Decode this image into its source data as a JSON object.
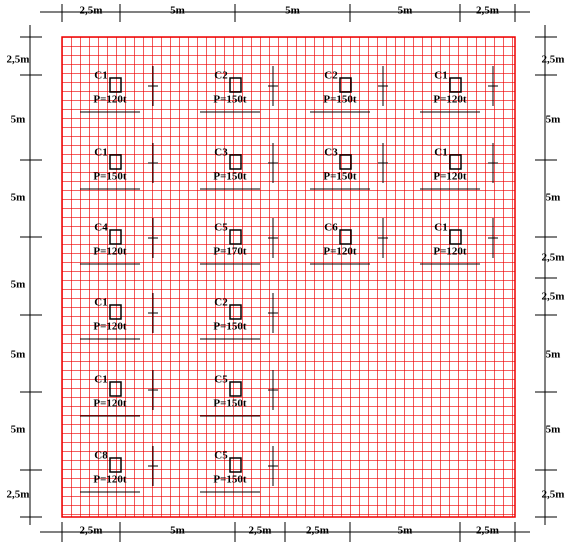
{
  "dimensions": {
    "top": [
      "2,5m",
      "5m",
      "5m",
      "5m",
      "2,5m"
    ],
    "bottom": [
      "2,5m",
      "5m",
      "2,5m",
      "2,5m",
      "5m",
      "2,5m"
    ],
    "left": [
      "2,5m",
      "5m",
      "5m",
      "5m",
      "5m",
      "5m",
      "2,5m"
    ],
    "right": [
      "2,5m",
      "5m",
      "5m",
      "2,5m",
      "2,5m",
      "5m",
      "5m",
      "2,5m"
    ]
  },
  "columns": [
    {
      "name": "C1",
      "load": "P=120t"
    },
    {
      "name": "C2",
      "load": "P=150t"
    },
    {
      "name": "C2",
      "load": "P=150t"
    },
    {
      "name": "C1",
      "load": "P=120t"
    },
    {
      "name": "C1",
      "load": "P=150t"
    },
    {
      "name": "C3",
      "load": "P=150t"
    },
    {
      "name": "C3",
      "load": "P=150t"
    },
    {
      "name": "C1",
      "load": "P=120t"
    },
    {
      "name": "C4",
      "load": "P=120t"
    },
    {
      "name": "C5",
      "load": "P=170t"
    },
    {
      "name": "C6",
      "load": "P=120t"
    },
    {
      "name": "C1",
      "load": "P=120t"
    },
    {
      "name": "C1",
      "load": "P=120t"
    },
    {
      "name": "C2",
      "load": "P=150t"
    },
    {
      "name": "C1",
      "load": "P=120t"
    },
    {
      "name": "C5",
      "load": "P=150t"
    },
    {
      "name": "C8",
      "load": "P=120t"
    },
    {
      "name": "C5",
      "load": "P=150t"
    }
  ]
}
